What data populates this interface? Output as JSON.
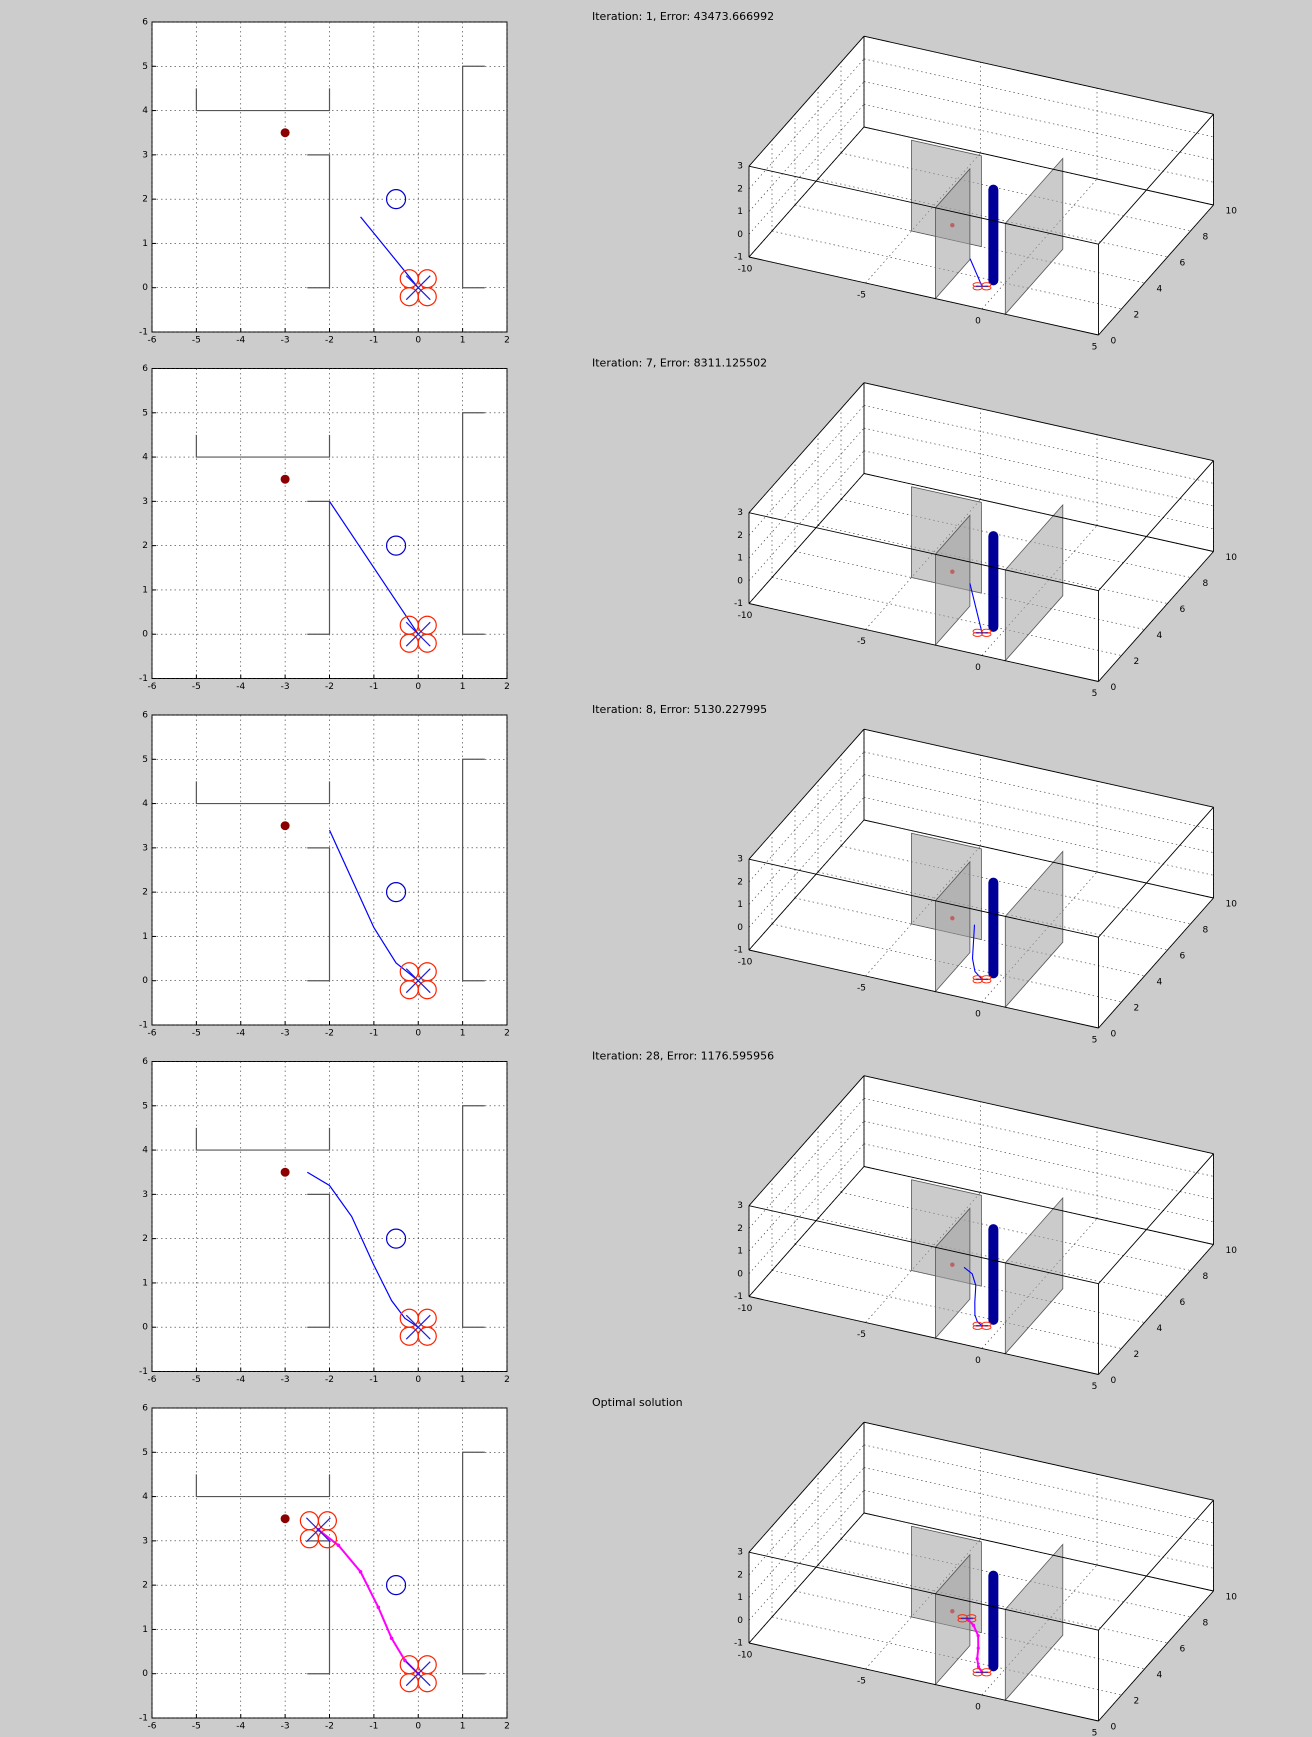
{
  "chart_data": [
    {
      "type": "line",
      "xlim": [
        -6,
        2
      ],
      "ylim": [
        -1,
        6
      ],
      "xticks": [
        -6,
        -5,
        -4,
        -3,
        -2,
        -1,
        0,
        1,
        2
      ],
      "yticks": [
        -1,
        0,
        1,
        2,
        3,
        4,
        5,
        6
      ],
      "grid": true,
      "series": [
        {
          "style": "line",
          "color": "#555555",
          "x": [
            -5,
            -5,
            -2,
            -2,
            null,
            -2.5,
            -2,
            -2,
            -2.5,
            null,
            1.5,
            1,
            1,
            1.5
          ],
          "values": [
            4.5,
            4,
            4,
            4.5,
            null,
            3,
            3,
            0,
            0,
            null,
            5,
            5,
            0,
            0
          ]
        },
        {
          "style": "dot",
          "color": "#8b0000",
          "x": [
            -3
          ],
          "values": [
            3.5
          ]
        },
        {
          "style": "circle",
          "color": "#0000cc",
          "x": [
            -0.5
          ],
          "values": [
            2
          ]
        },
        {
          "style": "line",
          "color": "#0000ff",
          "x": [
            -1.3,
            0
          ],
          "values": [
            1.6,
            0
          ]
        },
        {
          "style": "quad",
          "color": "#ff2200",
          "x": [
            0
          ],
          "values": [
            0
          ]
        }
      ]
    },
    {
      "type": "line3d",
      "title": "Iteration: 1, Error: 43473.666992",
      "xlim": [
        -10,
        5
      ],
      "ylim": [
        0,
        10
      ],
      "zlim": [
        -1,
        3
      ],
      "xticks": [
        -10,
        -5,
        0,
        5
      ],
      "yticks": [
        0,
        2,
        4,
        6,
        8,
        10
      ],
      "zticks": [
        -1,
        0,
        1,
        2,
        3
      ],
      "grid": true,
      "series": [
        {
          "style": "plane",
          "color": "#a0a0a0",
          "x": [
            -5,
            -2
          ],
          "y": [
            4,
            4
          ]
        },
        {
          "style": "plane",
          "color": "#a0a0a0",
          "x": [
            -2,
            -2
          ],
          "y": [
            0,
            3
          ]
        },
        {
          "style": "plane",
          "color": "#a0a0a0",
          "x": [
            1,
            1
          ],
          "y": [
            0,
            5
          ]
        },
        {
          "style": "bar",
          "color": "#000099",
          "x": [
            -0.5
          ],
          "y": [
            2
          ]
        },
        {
          "style": "dot",
          "color": "#c06060",
          "x": [
            -3
          ],
          "y": [
            3.5
          ],
          "z": [
            0
          ]
        },
        {
          "style": "line",
          "color": "#0000ff",
          "x": [
            -1.3,
            0
          ],
          "y": [
            1.6,
            0
          ],
          "z": [
            0,
            0
          ]
        },
        {
          "style": "quad",
          "color": "#ff2200",
          "x": [
            0
          ],
          "y": [
            0
          ],
          "z": [
            0
          ]
        }
      ]
    },
    {
      "type": "line",
      "xlim": [
        -6,
        2
      ],
      "ylim": [
        -1,
        6
      ],
      "xticks": [
        -6,
        -5,
        -4,
        -3,
        -2,
        -1,
        0,
        1,
        2
      ],
      "yticks": [
        -1,
        0,
        1,
        2,
        3,
        4,
        5,
        6
      ],
      "grid": true,
      "series": [
        {
          "style": "line",
          "color": "#555555",
          "x": [
            -5,
            -5,
            -2,
            -2,
            null,
            -2.5,
            -2,
            -2,
            -2.5,
            null,
            1.5,
            1,
            1,
            1.5
          ],
          "values": [
            4.5,
            4,
            4,
            4.5,
            null,
            3,
            3,
            0,
            0,
            null,
            5,
            5,
            0,
            0
          ]
        },
        {
          "style": "dot",
          "color": "#8b0000",
          "x": [
            -3
          ],
          "values": [
            3.5
          ]
        },
        {
          "style": "circle",
          "color": "#0000cc",
          "x": [
            -0.5
          ],
          "values": [
            2
          ]
        },
        {
          "style": "line",
          "color": "#0000ff",
          "x": [
            -2,
            0
          ],
          "values": [
            3,
            0
          ]
        },
        {
          "style": "quad",
          "color": "#ff2200",
          "x": [
            0
          ],
          "values": [
            0
          ]
        }
      ]
    },
    {
      "type": "line3d",
      "title": "Iteration: 7, Error: 8311.125502",
      "xlim": [
        -10,
        5
      ],
      "ylim": [
        0,
        10
      ],
      "zlim": [
        -1,
        3
      ],
      "xticks": [
        -10,
        -5,
        0,
        5
      ],
      "yticks": [
        0,
        2,
        4,
        6,
        8,
        10
      ],
      "zticks": [
        -1,
        0,
        1,
        2,
        3
      ],
      "grid": true,
      "series": [
        {
          "style": "plane",
          "color": "#a0a0a0",
          "x": [
            -5,
            -2
          ],
          "y": [
            4,
            4
          ]
        },
        {
          "style": "plane",
          "color": "#a0a0a0",
          "x": [
            -2,
            -2
          ],
          "y": [
            0,
            3
          ]
        },
        {
          "style": "plane",
          "color": "#a0a0a0",
          "x": [
            1,
            1
          ],
          "y": [
            0,
            5
          ]
        },
        {
          "style": "bar",
          "color": "#000099",
          "x": [
            -0.5
          ],
          "y": [
            2
          ]
        },
        {
          "style": "dot",
          "color": "#c06060",
          "x": [
            -3
          ],
          "y": [
            3.5
          ],
          "z": [
            0
          ]
        },
        {
          "style": "line",
          "color": "#0000ff",
          "x": [
            -2,
            0
          ],
          "y": [
            3,
            0
          ],
          "z": [
            0,
            0
          ]
        },
        {
          "style": "quad",
          "color": "#ff2200",
          "x": [
            0
          ],
          "y": [
            0
          ],
          "z": [
            0
          ]
        }
      ]
    },
    {
      "type": "line",
      "xlim": [
        -6,
        2
      ],
      "ylim": [
        -1,
        6
      ],
      "xticks": [
        -6,
        -5,
        -4,
        -3,
        -2,
        -1,
        0,
        1,
        2
      ],
      "yticks": [
        -1,
        0,
        1,
        2,
        3,
        4,
        5,
        6
      ],
      "grid": true,
      "series": [
        {
          "style": "line",
          "color": "#555555",
          "x": [
            -5,
            -5,
            -2,
            -2,
            null,
            -2.5,
            -2,
            -2,
            -2.5,
            null,
            1.5,
            1,
            1,
            1.5
          ],
          "values": [
            4.5,
            4,
            4,
            4.5,
            null,
            3,
            3,
            0,
            0,
            null,
            5,
            5,
            0,
            0
          ]
        },
        {
          "style": "dot",
          "color": "#8b0000",
          "x": [
            -3
          ],
          "values": [
            3.5
          ]
        },
        {
          "style": "circle",
          "color": "#0000cc",
          "x": [
            -0.5
          ],
          "values": [
            2
          ]
        },
        {
          "style": "line",
          "color": "#0000ff",
          "x": [
            -2,
            -1.5,
            -1,
            -0.5,
            0
          ],
          "values": [
            3.4,
            2.3,
            1.2,
            0.4,
            0
          ]
        },
        {
          "style": "quad",
          "color": "#ff2200",
          "x": [
            0
          ],
          "values": [
            0
          ]
        }
      ]
    },
    {
      "type": "line3d",
      "title": "Iteration: 8, Error: 5130.227995",
      "xlim": [
        -10,
        5
      ],
      "ylim": [
        0,
        10
      ],
      "zlim": [
        -1,
        3
      ],
      "xticks": [
        -10,
        -5,
        0,
        5
      ],
      "yticks": [
        0,
        2,
        4,
        6,
        8,
        10
      ],
      "zticks": [
        -1,
        0,
        1,
        2,
        3
      ],
      "grid": true,
      "series": [
        {
          "style": "plane",
          "color": "#a0a0a0",
          "x": [
            -5,
            -2
          ],
          "y": [
            4,
            4
          ]
        },
        {
          "style": "plane",
          "color": "#a0a0a0",
          "x": [
            -2,
            -2
          ],
          "y": [
            0,
            3
          ]
        },
        {
          "style": "plane",
          "color": "#a0a0a0",
          "x": [
            1,
            1
          ],
          "y": [
            0,
            5
          ]
        },
        {
          "style": "bar",
          "color": "#000099",
          "x": [
            -0.5
          ],
          "y": [
            2
          ]
        },
        {
          "style": "dot",
          "color": "#c06060",
          "x": [
            -3
          ],
          "y": [
            3.5
          ],
          "z": [
            0
          ]
        },
        {
          "style": "line",
          "color": "#0000ff",
          "x": [
            -2,
            -1.5,
            -1,
            -0.5,
            0
          ],
          "y": [
            3.4,
            2.3,
            1.2,
            0.4,
            0
          ],
          "z": [
            0,
            0,
            0,
            0,
            0
          ]
        },
        {
          "style": "quad",
          "color": "#ff2200",
          "x": [
            0
          ],
          "y": [
            0
          ],
          "z": [
            0
          ]
        }
      ]
    },
    {
      "type": "line",
      "xlim": [
        -6,
        2
      ],
      "ylim": [
        -1,
        6
      ],
      "xticks": [
        -6,
        -5,
        -4,
        -3,
        -2,
        -1,
        0,
        1,
        2
      ],
      "yticks": [
        -1,
        0,
        1,
        2,
        3,
        4,
        5,
        6
      ],
      "grid": true,
      "series": [
        {
          "style": "line",
          "color": "#555555",
          "x": [
            -5,
            -5,
            -2,
            -2,
            null,
            -2.5,
            -2,
            -2,
            -2.5,
            null,
            1.5,
            1,
            1,
            1.5
          ],
          "values": [
            4.5,
            4,
            4,
            4.5,
            null,
            3,
            3,
            0,
            0,
            null,
            5,
            5,
            0,
            0
          ]
        },
        {
          "style": "dot",
          "color": "#8b0000",
          "x": [
            -3
          ],
          "values": [
            3.5
          ]
        },
        {
          "style": "circle",
          "color": "#0000cc",
          "x": [
            -0.5
          ],
          "values": [
            2
          ]
        },
        {
          "style": "line",
          "color": "#0000ff",
          "x": [
            -2.5,
            -2,
            -1.5,
            -1,
            -0.6,
            -0.3,
            0
          ],
          "values": [
            3.5,
            3.2,
            2.5,
            1.4,
            0.6,
            0.2,
            0
          ]
        },
        {
          "style": "quad",
          "color": "#ff2200",
          "x": [
            0
          ],
          "values": [
            0
          ]
        }
      ]
    },
    {
      "type": "line3d",
      "title": "Iteration: 28, Error: 1176.595956",
      "xlim": [
        -10,
        5
      ],
      "ylim": [
        0,
        10
      ],
      "zlim": [
        -1,
        3
      ],
      "xticks": [
        -10,
        -5,
        0,
        5
      ],
      "yticks": [
        0,
        2,
        4,
        6,
        8,
        10
      ],
      "zticks": [
        -1,
        0,
        1,
        2,
        3
      ],
      "grid": true,
      "series": [
        {
          "style": "plane",
          "color": "#a0a0a0",
          "x": [
            -5,
            -2
          ],
          "y": [
            4,
            4
          ]
        },
        {
          "style": "plane",
          "color": "#a0a0a0",
          "x": [
            -2,
            -2
          ],
          "y": [
            0,
            3
          ]
        },
        {
          "style": "plane",
          "color": "#a0a0a0",
          "x": [
            1,
            1
          ],
          "y": [
            0,
            5
          ]
        },
        {
          "style": "bar",
          "color": "#000099",
          "x": [
            -0.5
          ],
          "y": [
            2
          ]
        },
        {
          "style": "dot",
          "color": "#c06060",
          "x": [
            -3
          ],
          "y": [
            3.5
          ],
          "z": [
            0
          ]
        },
        {
          "style": "line",
          "color": "#0000ff",
          "x": [
            -2.5,
            -2,
            -1.5,
            -1,
            -0.6,
            -0.3,
            0
          ],
          "y": [
            3.5,
            3.2,
            2.5,
            1.4,
            0.6,
            0.2,
            0
          ],
          "z": [
            0,
            0,
            0,
            0,
            0,
            0,
            0
          ]
        },
        {
          "style": "quad",
          "color": "#ff2200",
          "x": [
            0
          ],
          "y": [
            0
          ],
          "z": [
            0
          ]
        }
      ]
    },
    {
      "type": "line",
      "xlim": [
        -6,
        2
      ],
      "ylim": [
        -1,
        6
      ],
      "xticks": [
        -6,
        -5,
        -4,
        -3,
        -2,
        -1,
        0,
        1,
        2
      ],
      "yticks": [
        -1,
        0,
        1,
        2,
        3,
        4,
        5,
        6
      ],
      "grid": true,
      "series": [
        {
          "style": "line",
          "color": "#555555",
          "x": [
            -5,
            -5,
            -2,
            -2,
            null,
            -2.5,
            -2,
            -2,
            -2.5,
            null,
            1.5,
            1,
            1,
            1.5
          ],
          "values": [
            4.5,
            4,
            4,
            4.5,
            null,
            3,
            3,
            0,
            0,
            null,
            5,
            5,
            0,
            0
          ]
        },
        {
          "style": "dot",
          "color": "#8b0000",
          "x": [
            -3
          ],
          "values": [
            3.5
          ]
        },
        {
          "style": "circle",
          "color": "#0000cc",
          "x": [
            -0.5
          ],
          "values": [
            2
          ]
        },
        {
          "style": "line-dots",
          "color": "#ff00ff",
          "x": [
            -2.25,
            -1.8,
            -1.3,
            -0.9,
            -0.6,
            -0.3,
            0
          ],
          "values": [
            3.25,
            2.9,
            2.3,
            1.5,
            0.8,
            0.3,
            0
          ]
        },
        {
          "style": "quad",
          "color": "#ff2200",
          "x": [
            -2.25,
            0
          ],
          "values": [
            3.25,
            0
          ]
        }
      ]
    },
    {
      "type": "line3d",
      "title": "Optimal solution",
      "xlim": [
        -10,
        5
      ],
      "ylim": [
        0,
        10
      ],
      "zlim": [
        -1,
        3
      ],
      "xticks": [
        -10,
        -5,
        0,
        5
      ],
      "yticks": [
        0,
        2,
        4,
        6,
        8,
        10
      ],
      "zticks": [
        -1,
        0,
        1,
        2,
        3
      ],
      "grid": true,
      "series": [
        {
          "style": "plane",
          "color": "#a0a0a0",
          "x": [
            -5,
            -2
          ],
          "y": [
            4,
            4
          ]
        },
        {
          "style": "plane",
          "color": "#a0a0a0",
          "x": [
            -2,
            -2
          ],
          "y": [
            0,
            3
          ]
        },
        {
          "style": "plane",
          "color": "#a0a0a0",
          "x": [
            1,
            1
          ],
          "y": [
            0,
            5
          ]
        },
        {
          "style": "bar",
          "color": "#000099",
          "x": [
            -0.5
          ],
          "y": [
            2
          ]
        },
        {
          "style": "dot",
          "color": "#c06060",
          "x": [
            -3
          ],
          "y": [
            3.5
          ],
          "z": [
            0
          ]
        },
        {
          "style": "line-dots",
          "color": "#ff00ff",
          "x": [
            -2.25,
            -1.8,
            -1.3,
            -0.9,
            -0.6,
            -0.3,
            0
          ],
          "y": [
            3.25,
            2.9,
            2.3,
            1.5,
            0.8,
            0.3,
            0
          ],
          "z": [
            0,
            0,
            0,
            0,
            0,
            0,
            0
          ]
        },
        {
          "style": "quad",
          "color": "#ff2200",
          "x": [
            -2.25,
            0
          ],
          "y": [
            3.25,
            0
          ],
          "z": [
            0,
            0
          ]
        }
      ]
    }
  ]
}
